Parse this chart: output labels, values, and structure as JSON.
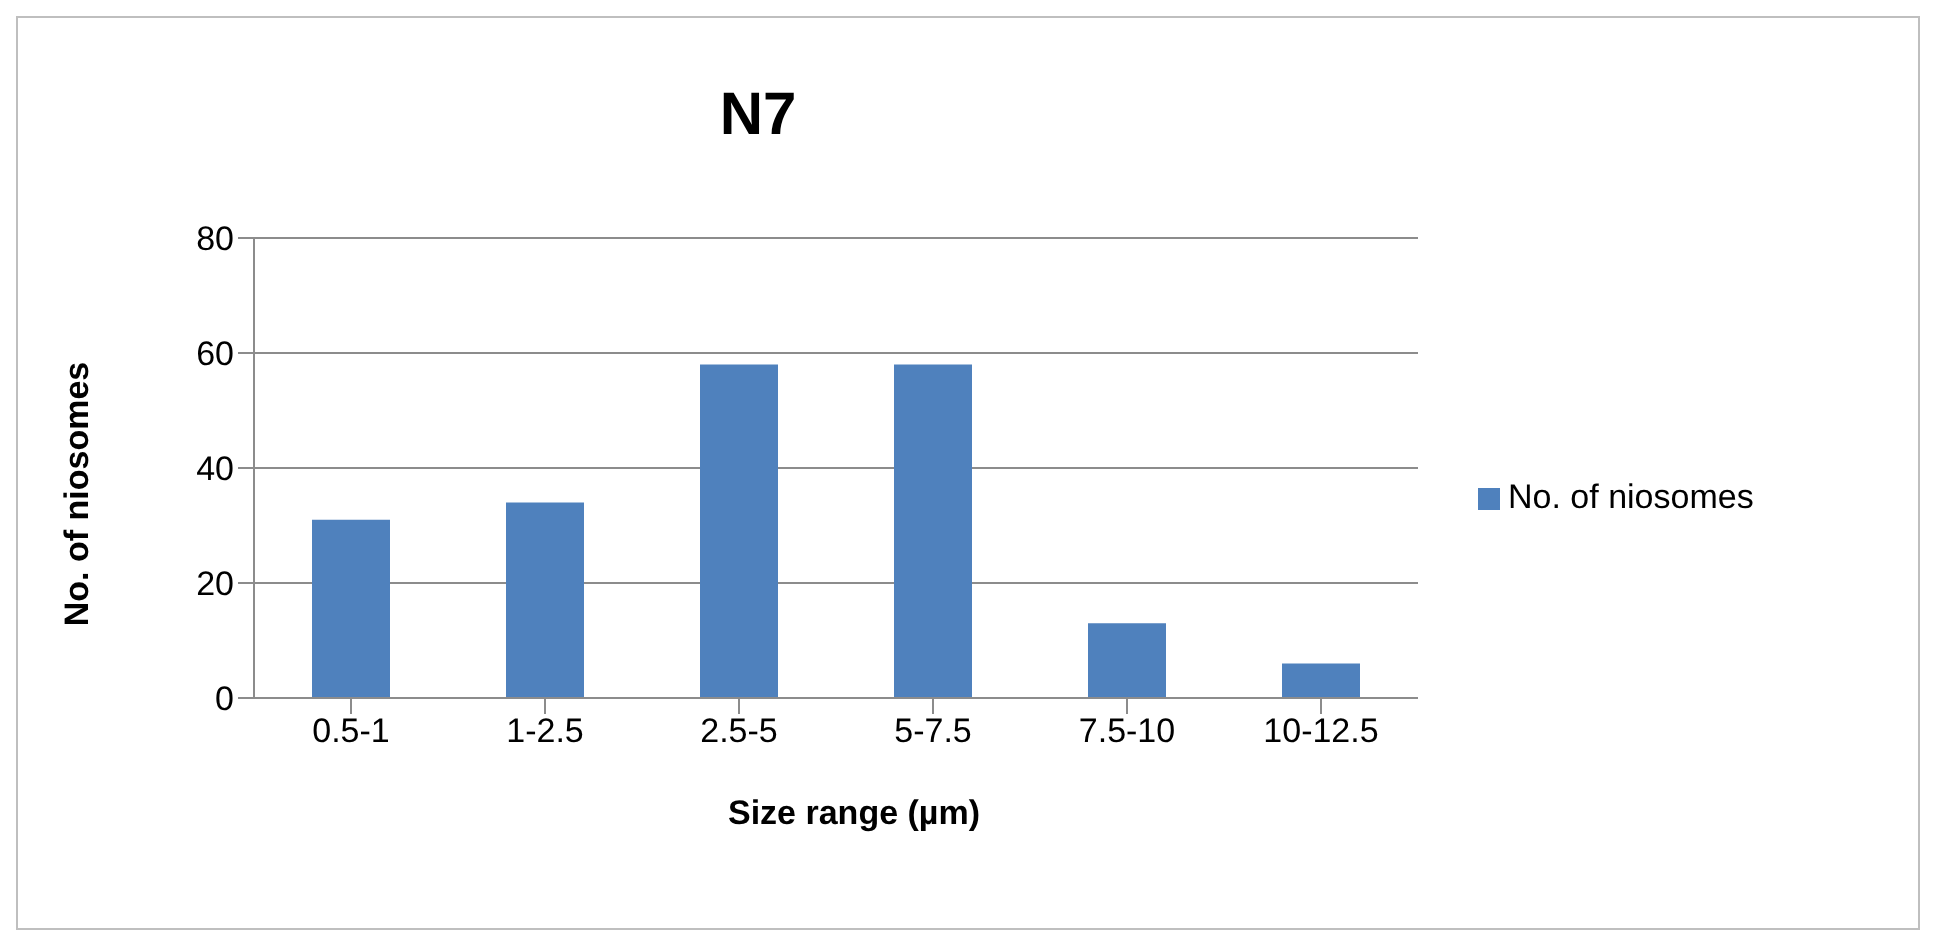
{
  "chart_data": {
    "type": "bar",
    "title": "N7",
    "xlabel": "Size range (µm)",
    "ylabel": "No. of niosomes",
    "categories": [
      "0.5-1",
      "1-2.5",
      "2.5-5",
      "5-7.5",
      "7.5-10",
      "10-12.5"
    ],
    "series": [
      {
        "name": "No. of niosomes",
        "color": "#4f81bd",
        "values": [
          31,
          34,
          58,
          58,
          13,
          6
        ]
      }
    ],
    "ylim": [
      0,
      80
    ],
    "yticks": [
      0,
      20,
      40,
      60,
      80
    ],
    "grid": "y",
    "legend": "right"
  }
}
